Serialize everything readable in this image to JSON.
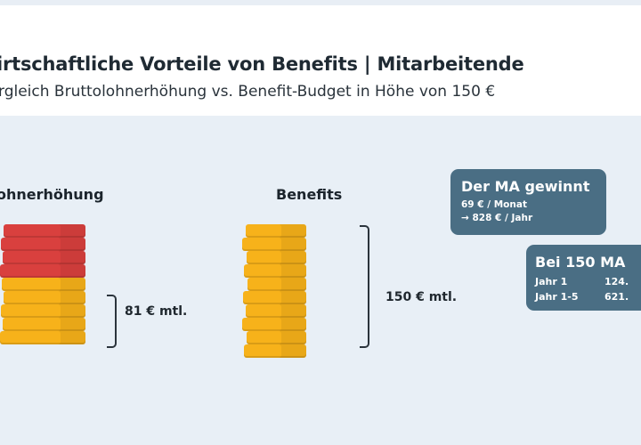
{
  "header": {
    "title": "irtschaftliche Vorteile von Benefits | Mitarbeitende",
    "subtitle": "rgleich Bruttolohnerhöhung vs. Benefit-Budget in Höhe von 150 €"
  },
  "left_column": {
    "label": "ohnerhöhung",
    "amount": "81 € mtl.",
    "stack": {
      "red_coins": 4,
      "yellow_coins": 5
    }
  },
  "right_column": {
    "label": "Benefits",
    "amount": "150 € mtl.",
    "stack": {
      "yellow_coins": 10
    }
  },
  "gain_card": {
    "title": "Der MA gewinnt",
    "line1": "69 € / Monat",
    "line2": "→ 828 € / Jahr"
  },
  "company_card": {
    "title": "Bei 150 MA",
    "rows": [
      {
        "label": "Jahr 1",
        "value": "124."
      },
      {
        "label": "Jahr 1-5",
        "value": "621."
      }
    ]
  },
  "colors": {
    "coin_red": "#d9403e",
    "coin_yellow": "#f7b21a",
    "panel_bg": "#e8eff6",
    "card_bg": "#4a6e84"
  }
}
